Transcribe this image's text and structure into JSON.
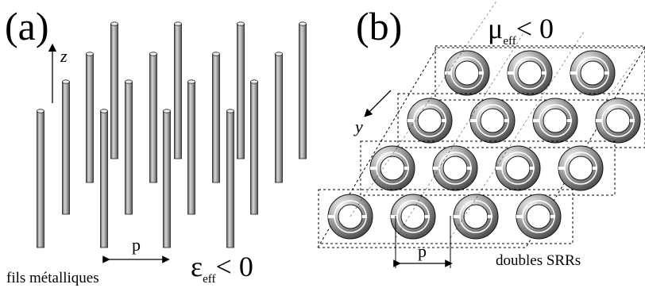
{
  "panel_a": {
    "label": "(a)",
    "axis_label": "z",
    "period_label": "p",
    "caption": "fils métalliques",
    "condition": {
      "symbol": "ε",
      "subscript": "eff",
      "relation": "< 0"
    }
  },
  "panel_b": {
    "label": "(b)",
    "axis_label": "y",
    "period_label": "p",
    "caption": "doubles SRRs",
    "condition": {
      "symbol": "μ",
      "subscript": "eff",
      "relation": "< 0"
    }
  },
  "colors": {
    "line": "#000000",
    "rod": "#9a9a9a",
    "ring": "#8c8c8c"
  }
}
